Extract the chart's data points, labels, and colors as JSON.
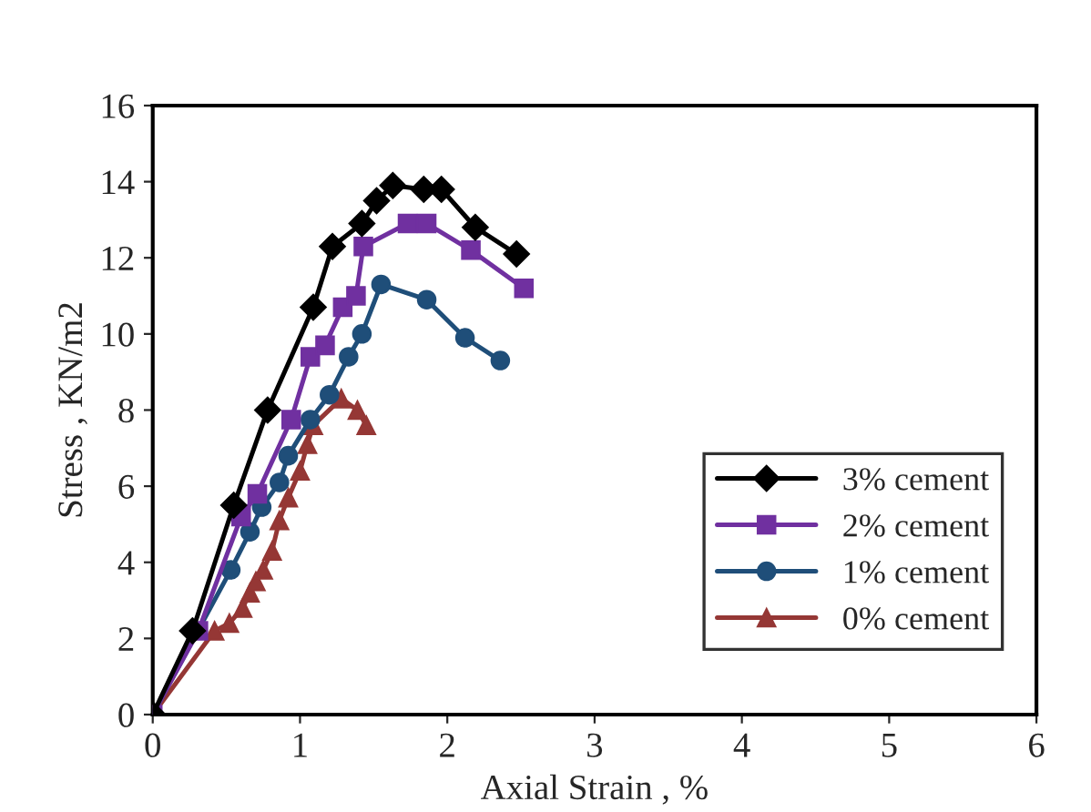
{
  "chart_data": {
    "type": "line",
    "xlabel": "Axial Strain , %",
    "ylabel": "Stress , KN/m2",
    "xlim": [
      0,
      6
    ],
    "xticks": [
      0,
      1,
      2,
      3,
      4,
      5,
      6
    ],
    "ylim": [
      0,
      16
    ],
    "yticks": [
      0,
      2,
      4,
      6,
      8,
      10,
      12,
      14,
      16
    ],
    "grid": false,
    "legend": "bottom right",
    "line_style": "solid",
    "series": [
      {
        "name": "3% cement",
        "color": "#000000",
        "marker": "diamond",
        "x": [
          0,
          0.27,
          0.55,
          0.78,
          1.09,
          1.22,
          1.42,
          1.52,
          1.63,
          1.84,
          1.96,
          2.19,
          2.47
        ],
        "values": [
          0,
          2.2,
          5.5,
          8.0,
          10.7,
          12.3,
          12.9,
          13.5,
          13.9,
          13.8,
          13.8,
          12.8,
          12.1
        ]
      },
      {
        "name": "2% cement",
        "color": "#7030a0",
        "marker": "square",
        "x": [
          0,
          0.31,
          0.6,
          0.71,
          0.94,
          1.07,
          1.17,
          1.29,
          1.38,
          1.43,
          1.73,
          1.86,
          2.16,
          2.52
        ],
        "values": [
          0,
          2.2,
          5.2,
          5.8,
          7.75,
          9.4,
          9.7,
          10.7,
          11.0,
          12.3,
          12.9,
          12.9,
          12.2,
          11.2
        ]
      },
      {
        "name": "1% cement",
        "color": "#1f4e79",
        "marker": "circle",
        "x": [
          0,
          0.53,
          0.66,
          0.74,
          0.86,
          0.92,
          1.07,
          1.2,
          1.33,
          1.42,
          1.55,
          1.86,
          2.12,
          2.36
        ],
        "values": [
          0,
          3.8,
          4.8,
          5.45,
          6.1,
          6.8,
          7.75,
          8.4,
          9.4,
          10.0,
          11.3,
          10.9,
          9.9,
          9.3
        ]
      },
      {
        "name": "0% cement",
        "color": "#953735",
        "marker": "triangle",
        "x": [
          0,
          0.42,
          0.52,
          0.61,
          0.66,
          0.7,
          0.75,
          0.81,
          0.86,
          0.92,
          1.0,
          1.05,
          1.09,
          1.28,
          1.39,
          1.45
        ],
        "values": [
          0,
          2.2,
          2.4,
          2.8,
          3.2,
          3.5,
          3.8,
          4.3,
          5.1,
          5.7,
          6.4,
          7.1,
          7.6,
          8.3,
          8.0,
          7.6
        ]
      }
    ]
  }
}
